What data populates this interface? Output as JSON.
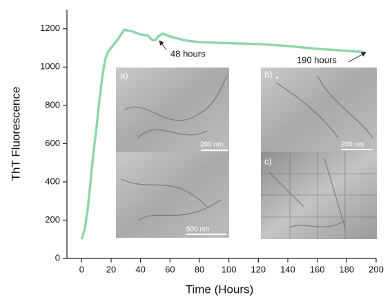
{
  "chart_data": {
    "type": "line",
    "xlabel": "Time (Hours)",
    "ylabel": "ThT Fluorescence",
    "x": [
      0,
      2,
      4,
      6,
      8,
      10,
      12,
      14,
      16,
      18,
      20,
      25,
      29,
      35,
      40,
      45,
      48,
      50,
      52,
      55,
      60,
      70,
      80,
      100,
      120,
      140,
      160,
      180,
      190,
      192
    ],
    "series": [
      {
        "color": "#8fd6a8",
        "values": [
          100,
          150,
          250,
          400,
          550,
          680,
          820,
          950,
          1040,
          1080,
          1100,
          1150,
          1195,
          1185,
          1170,
          1165,
          1140,
          1140,
          1160,
          1175,
          1160,
          1140,
          1130,
          1125,
          1120,
          1110,
          1095,
          1085,
          1080,
          1075
        ]
      }
    ],
    "xlim": [
      -10,
      200
    ],
    "xticks": [
      0,
      20,
      40,
      60,
      80,
      100,
      120,
      140,
      160,
      180,
      200
    ],
    "ylim": [
      0,
      1300
    ],
    "yticks": [
      0,
      200,
      400,
      600,
      800,
      1000,
      1200
    ],
    "annotations": [
      "48 hours",
      "190 hours"
    ],
    "panels": [
      {
        "label": "a)",
        "scale": "200 nm"
      },
      {
        "scale": "500 nm"
      },
      {
        "label": "b)",
        "scale": "200 nm",
        "marker": "*"
      },
      {
        "label": "c)"
      }
    ]
  }
}
